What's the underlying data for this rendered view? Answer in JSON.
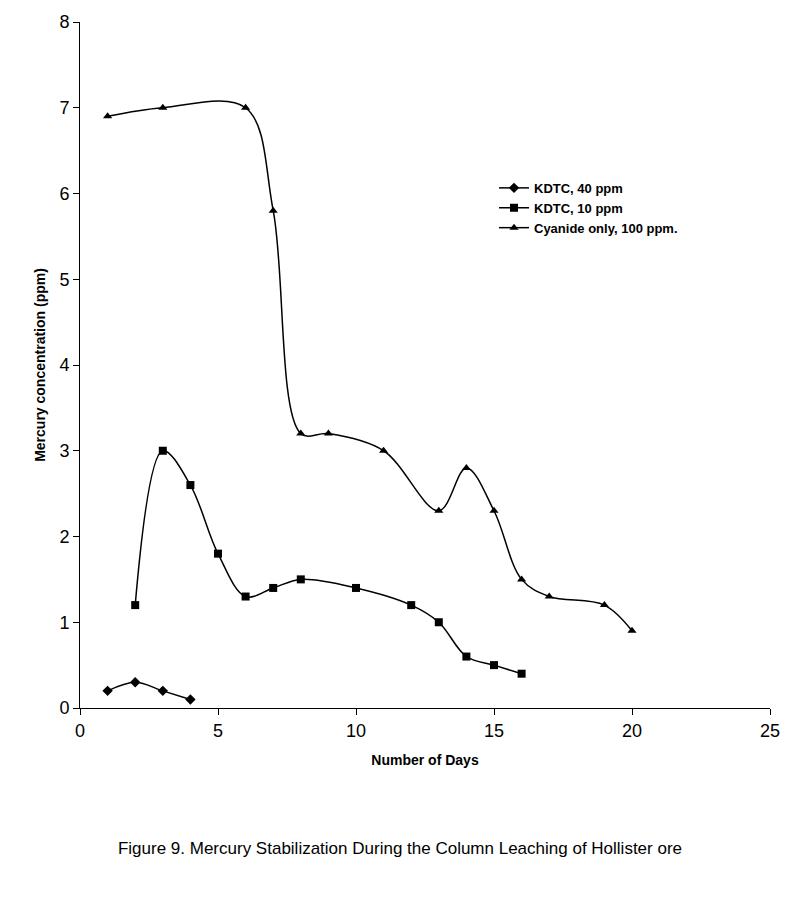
{
  "chart_data": {
    "type": "line",
    "title": "Figure 9. Mercury Stabilization During the Column Leaching of Hollister ore",
    "x_label": "Number of Days",
    "y_label": "Mercury concentration (ppm)",
    "xlim": [
      0,
      25
    ],
    "xticks": [
      0,
      5,
      10,
      15,
      20,
      25
    ],
    "ylim": [
      0,
      8
    ],
    "yticks": [
      0,
      1,
      2,
      3,
      4,
      5,
      6,
      7,
      8
    ],
    "grid": false,
    "legend": "right",
    "series": [
      {
        "name": "KDTC, 40 ppm",
        "color": "#000000",
        "marker": "diamond",
        "line_style": "spline",
        "x": [
          1,
          2,
          3,
          4
        ],
        "values": [
          0.2,
          0.3,
          0.2,
          0.1
        ]
      },
      {
        "name": "KDTC, 10 ppm",
        "color": "#000000",
        "marker": "square",
        "line_style": "spline",
        "x": [
          2,
          3,
          4,
          5,
          6,
          7,
          8,
          10,
          12,
          13,
          14,
          15,
          16
        ],
        "values": [
          1.2,
          3.0,
          2.6,
          1.8,
          1.3,
          1.4,
          1.5,
          1.4,
          1.2,
          1.0,
          0.6,
          0.5,
          0.4
        ]
      },
      {
        "name": "Cyanide only, 100 ppm.",
        "color": "#000000",
        "marker": "triangle-up",
        "line_style": "spline",
        "x": [
          1,
          3,
          6,
          7,
          8,
          9,
          11,
          13,
          14,
          15,
          16,
          17,
          19,
          20
        ],
        "values": [
          6.9,
          7.0,
          7.0,
          5.8,
          3.2,
          3.2,
          3.0,
          2.3,
          2.8,
          2.3,
          1.5,
          1.3,
          1.2,
          0.9
        ]
      }
    ]
  }
}
